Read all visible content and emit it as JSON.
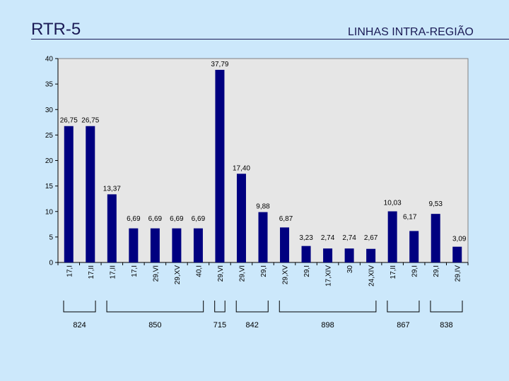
{
  "slide": {
    "title": "RTR-5",
    "subtitle": "LINHAS INTRA-REGIÃO"
  },
  "chart_data": {
    "type": "bar",
    "categories": [
      "17,I",
      "17,II",
      "17,II",
      "17,I",
      "29,VI",
      "29,XV",
      "40,I",
      "29,VI",
      "29,VI",
      "29,I",
      "29,XV",
      "29,I",
      "17,XIV",
      "30",
      "24,XIV",
      "17,II",
      "29,I",
      "29,I",
      "29,IV"
    ],
    "values": [
      26.75,
      26.75,
      13.37,
      6.69,
      6.69,
      6.69,
      6.69,
      37.79,
      17.4,
      9.88,
      6.87,
      3.23,
      2.74,
      2.74,
      2.67,
      10.03,
      6.17,
      9.53,
      3.09
    ],
    "data_labels": [
      "26,75",
      "26,75",
      "13,37",
      "6,69",
      "6,69",
      "6,69",
      "6,69",
      "37,79",
      "17,40",
      "9,88",
      "6,87",
      "3,23",
      "2,74",
      "2,74",
      "2,67",
      "10,03",
      "6,17",
      "9,53",
      "3,09"
    ],
    "ylim": [
      0,
      40
    ],
    "yticks": [
      0,
      5,
      10,
      15,
      20,
      25,
      30,
      35,
      40
    ],
    "grid": false,
    "bar_color": "#000080",
    "groups": [
      {
        "label": "824",
        "start": 0,
        "end": 1
      },
      {
        "label": "850",
        "start": 2,
        "end": 6
      },
      {
        "label": "715",
        "start": 7,
        "end": 7
      },
      {
        "label": "842",
        "start": 8,
        "end": 9
      },
      {
        "label": "898",
        "start": 10,
        "end": 14
      },
      {
        "label": "867",
        "start": 15,
        "end": 16
      },
      {
        "label": "838",
        "start": 17,
        "end": 18
      }
    ],
    "title": "",
    "xlabel": "",
    "ylabel": ""
  }
}
